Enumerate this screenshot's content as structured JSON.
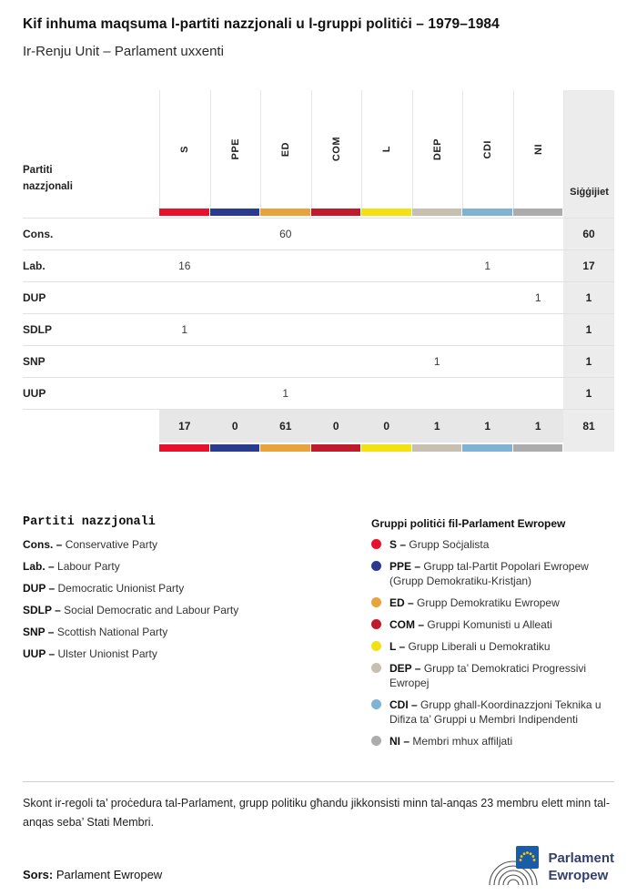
{
  "page": {
    "title": "Kif inhuma maqsuma l-partiti nazzjonali u l-gruppi politiċi – 1979–1984",
    "subtitle": "Ir-Renju Unit – Parlament uxxenti"
  },
  "chart_data": {
    "type": "table",
    "title": "Kif inhuma maqsuma l-partiti nazzjonali u l-gruppi politiċi – 1979–1984",
    "subtitle": "Ir-Renju Unit – Parlament uxxenti",
    "row_header": "Partiti nazzjonali",
    "seats_header": "Siġġijiet",
    "columns": [
      "S",
      "PPE",
      "ED",
      "COM",
      "L",
      "DEP",
      "CDI",
      "NI"
    ],
    "column_colors": [
      "#e8112d",
      "#2a3b8f",
      "#e8a33d",
      "#bf1b2c",
      "#f3e114",
      "#c7c0b1",
      "#7fb2d3",
      "#acacac"
    ],
    "rows": [
      {
        "party": "Cons.",
        "values": [
          "",
          "",
          "60",
          "",
          "",
          "",
          "",
          ""
        ],
        "total": "60"
      },
      {
        "party": "Lab.",
        "values": [
          "16",
          "",
          "",
          "",
          "",
          "",
          "1",
          ""
        ],
        "total": "17"
      },
      {
        "party": "DUP",
        "values": [
          "",
          "",
          "",
          "",
          "",
          "",
          "",
          "1"
        ],
        "total": "1"
      },
      {
        "party": "SDLP",
        "values": [
          "1",
          "",
          "",
          "",
          "",
          "",
          "",
          ""
        ],
        "total": "1"
      },
      {
        "party": "SNP",
        "values": [
          "",
          "",
          "",
          "",
          "",
          "1",
          "",
          ""
        ],
        "total": "1"
      },
      {
        "party": "UUP",
        "values": [
          "",
          "",
          "1",
          "",
          "",
          "",
          "",
          ""
        ],
        "total": "1"
      }
    ],
    "totals": {
      "values": [
        "17",
        "0",
        "61",
        "0",
        "0",
        "1",
        "1",
        "1"
      ],
      "total": "81"
    }
  },
  "legend_parties": {
    "title": "Partiti nazzjonali",
    "items": [
      {
        "label": "Cons. –",
        "name": "Conservative Party"
      },
      {
        "label": "Lab. –",
        "name": "Labour Party"
      },
      {
        "label": "DUP –",
        "name": "Democratic Unionist Party"
      },
      {
        "label": "SDLP –",
        "name": "Social Democratic and Labour Party"
      },
      {
        "label": "SNP –",
        "name": "Scottish National Party"
      },
      {
        "label": "UUP –",
        "name": "Ulster Unionist Party"
      }
    ]
  },
  "legend_groups": {
    "title": "Gruppi politiċi fil-Parlament Ewropew",
    "items": [
      {
        "label": "S –",
        "name": "Grupp Soċjalista",
        "color": "#e8112d"
      },
      {
        "label": "PPE –",
        "name": "Grupp tal-Partit Popolari Ewropew (Grupp Demokratiku-Kristjan)",
        "color": "#2a3b8f"
      },
      {
        "label": "ED –",
        "name": "Grupp Demokratiku Ewropew",
        "color": "#e8a33d"
      },
      {
        "label": "COM –",
        "name": "Gruppi Komunisti u Alleati",
        "color": "#bf1b2c"
      },
      {
        "label": "L –",
        "name": "Grupp Liberali u Demokratiku",
        "color": "#f3e114"
      },
      {
        "label": "DEP –",
        "name": "Grupp ta’ Demokratici Progressivi Ewropej",
        "color": "#c7c0b1"
      },
      {
        "label": "CDI –",
        "name": "Grupp ghall-Koordinazzjoni Teknika u Difiza ta’ Gruppi u Membri Indipendenti",
        "color": "#7fb2d3"
      },
      {
        "label": "NI –",
        "name": "Membri mhux affiljati",
        "color": "#acacac"
      }
    ]
  },
  "footnote": "Skont ir-regoli ta’ proċedura tal-Parlament, grupp politiku għandu jikkonsisti minn tal-anqas 23 membru elett minn tal-anqas seba’ Stati Membri.",
  "source": {
    "label": "Sors:",
    "name": "Parlament Ewropew"
  },
  "logo": {
    "line1": "Parlament",
    "line2": "Ewropew"
  }
}
